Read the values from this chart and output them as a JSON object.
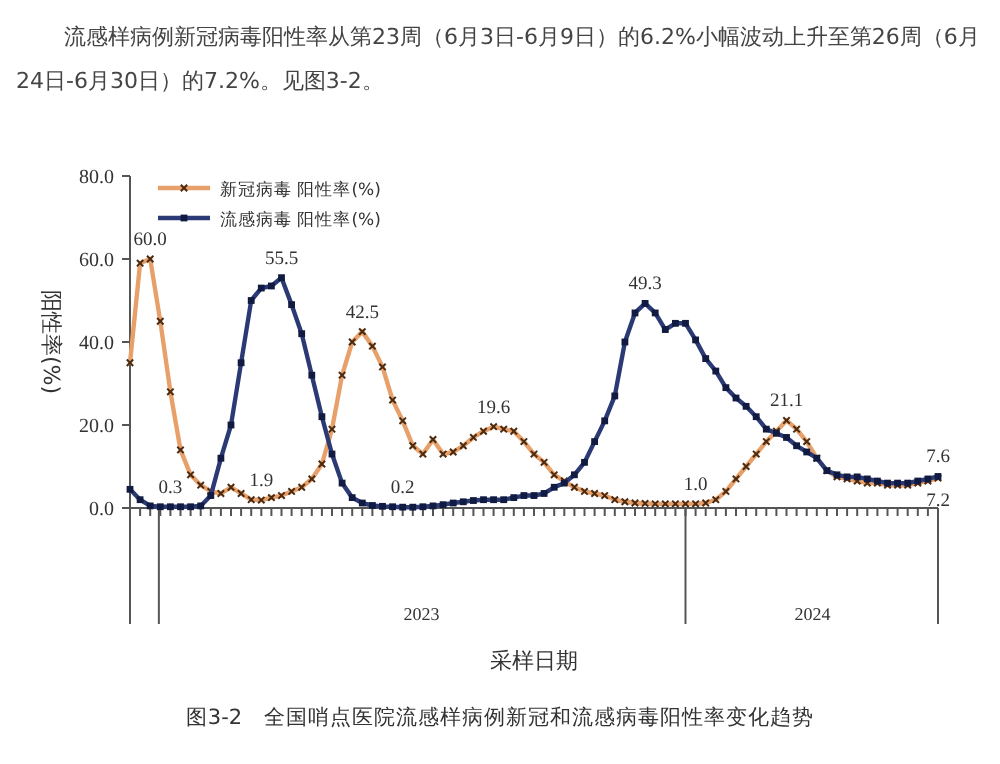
{
  "chart_data": {
    "type": "line",
    "title": "图3-2　全国哨点医院流感样病例新冠和流感病毒阳性率变化趋势",
    "annotations": [
      "流感样病例新冠病毒阳性率从第23周（6月3日-6月9日）的6.2%小幅波动上升至第26周（6月24日-6月30日）的7.2%。见图3-2。"
    ],
    "xlabel": "采样日期",
    "ylabel": "阳性率(%)",
    "x": [
      "2022-12-12",
      "2022-12-19",
      "2022-12-26",
      "2023-01-02",
      "2023-01-09",
      "2023-01-16",
      "2023-01-23",
      "2023-01-30",
      "2023-02-06",
      "2023-02-13",
      "2023-02-20",
      "2023-02-27",
      "2023-03-06",
      "2023-03-13",
      "2023-03-20",
      "2023-03-27",
      "2023-04-03",
      "2023-04-10",
      "2023-04-17",
      "2023-04-24",
      "2023-05-01",
      "2023-05-08",
      "2023-05-15",
      "2023-05-22",
      "2023-05-29",
      "2023-06-05",
      "2023-06-12",
      "2023-06-19",
      "2023-06-26",
      "2023-07-03",
      "2023-07-10",
      "2023-07-17",
      "2023-07-24",
      "2023-07-31",
      "2023-08-07",
      "2023-08-14",
      "2023-08-21",
      "2023-08-28",
      "2023-09-04",
      "2023-09-11",
      "2023-09-18",
      "2023-09-25",
      "2023-10-02",
      "2023-10-09",
      "2023-10-16",
      "2023-10-23",
      "2023-10-30",
      "2023-11-06",
      "2023-11-13",
      "2023-11-20",
      "2023-11-27",
      "2023-12-04",
      "2023-12-11",
      "2023-12-18",
      "2023-12-25",
      "2024-01-01",
      "2024-01-08",
      "2024-01-15",
      "2024-01-22",
      "2024-01-29",
      "2024-02-05",
      "2024-02-12",
      "2024-02-19",
      "2024-02-26",
      "2024-03-04",
      "2024-03-11",
      "2024-03-18",
      "2024-03-25",
      "2024-04-01",
      "2024-04-08",
      "2024-04-15",
      "2024-04-22",
      "2024-04-29",
      "2024-05-06",
      "2024-05-13",
      "2024-05-20",
      "2024-05-27",
      "2024-06-03",
      "2024-06-10",
      "2024-06-17",
      "2024-06-24"
    ],
    "xlim": [
      "2022-12-12",
      "2024-06-24"
    ],
    "xticks": [
      {
        "value": "2023-07-02",
        "label": "2023"
      },
      {
        "value": "2024-03-29",
        "label": "2024"
      }
    ],
    "ylim": [
      0,
      80
    ],
    "yticks": [
      {
        "value": 0,
        "label": "0.0"
      },
      {
        "value": 20,
        "label": "20.0"
      },
      {
        "value": 40,
        "label": "40.0"
      },
      {
        "value": 60,
        "label": "60.0"
      },
      {
        "value": 80,
        "label": "80.0"
      }
    ],
    "grid": false,
    "legend": "top left",
    "series": [
      {
        "name": "新冠病毒 阳性率(%)",
        "color": "#e8a06a",
        "marker": "cross",
        "values": [
          35,
          59,
          60,
          45,
          28,
          14,
          8,
          5.5,
          4,
          3.5,
          5,
          3.5,
          2,
          1.9,
          2.5,
          3,
          4,
          5,
          7,
          10.6,
          19,
          32,
          40,
          42.5,
          39,
          34,
          26,
          21,
          15,
          13,
          16.5,
          13,
          13.5,
          15,
          17,
          18.5,
          19.6,
          19,
          18.5,
          16,
          13,
          11,
          8,
          6.5,
          5,
          4,
          3.5,
          3,
          2,
          1.5,
          1.2,
          1.1,
          1,
          1,
          1,
          1,
          1.0,
          1.2,
          2,
          4,
          7,
          10,
          13,
          16,
          18.5,
          21.1,
          19,
          16,
          12,
          9,
          7.5,
          7,
          6.5,
          6,
          6,
          5.5,
          5.5,
          5.5,
          6,
          6.5,
          7.2
        ],
        "value_labels": [
          null,
          null,
          "60.0",
          null,
          null,
          null,
          null,
          null,
          null,
          null,
          null,
          null,
          null,
          "1.9",
          null,
          null,
          null,
          null,
          null,
          null,
          null,
          null,
          null,
          "42.5",
          null,
          null,
          null,
          null,
          null,
          null,
          null,
          null,
          null,
          null,
          null,
          null,
          "19.6",
          null,
          null,
          null,
          null,
          null,
          null,
          null,
          null,
          null,
          null,
          null,
          null,
          null,
          null,
          null,
          null,
          null,
          null,
          null,
          "1.0",
          null,
          null,
          null,
          null,
          null,
          null,
          null,
          null,
          "21.1",
          null,
          null,
          null,
          null,
          null,
          null,
          null,
          null,
          null,
          null,
          null,
          null,
          null,
          null,
          "7.2"
        ]
      },
      {
        "name": "流感病毒 阳性率(%)",
        "color": "#2b3a75",
        "marker": "square",
        "values": [
          4.5,
          2,
          0.5,
          0.3,
          0.3,
          0.3,
          0.3,
          0.5,
          3,
          12,
          20,
          35,
          50,
          53,
          53.5,
          55.5,
          49,
          42,
          32,
          22,
          13,
          6,
          2.5,
          1.2,
          0.6,
          0.4,
          0.3,
          0.2,
          0.2,
          0.3,
          0.5,
          0.8,
          1.2,
          1.5,
          1.8,
          2,
          2,
          2,
          2.5,
          3,
          3,
          3.5,
          5,
          6,
          8,
          11,
          16,
          21,
          27,
          40,
          47,
          49.3,
          47,
          43,
          44.5,
          44.5,
          40.5,
          36,
          33,
          29,
          26.5,
          24.5,
          22,
          19,
          18,
          17,
          15,
          13.5,
          12,
          9,
          8,
          7.5,
          7.5,
          7,
          6.5,
          6,
          6,
          6,
          6.5,
          7,
          7.6
        ],
        "value_labels": [
          null,
          null,
          null,
          null,
          "0.3",
          null,
          null,
          null,
          null,
          null,
          null,
          null,
          null,
          null,
          null,
          "55.5",
          null,
          null,
          null,
          null,
          null,
          null,
          null,
          null,
          null,
          null,
          null,
          "0.2",
          null,
          null,
          null,
          null,
          null,
          null,
          null,
          null,
          null,
          null,
          null,
          null,
          null,
          null,
          null,
          null,
          null,
          null,
          null,
          null,
          null,
          null,
          null,
          "49.3",
          null,
          null,
          null,
          null,
          null,
          null,
          null,
          null,
          null,
          null,
          null,
          null,
          null,
          null,
          null,
          null,
          null,
          null,
          null,
          null,
          null,
          null,
          null,
          null,
          null,
          null,
          null,
          null,
          "7.6"
        ]
      }
    ]
  }
}
